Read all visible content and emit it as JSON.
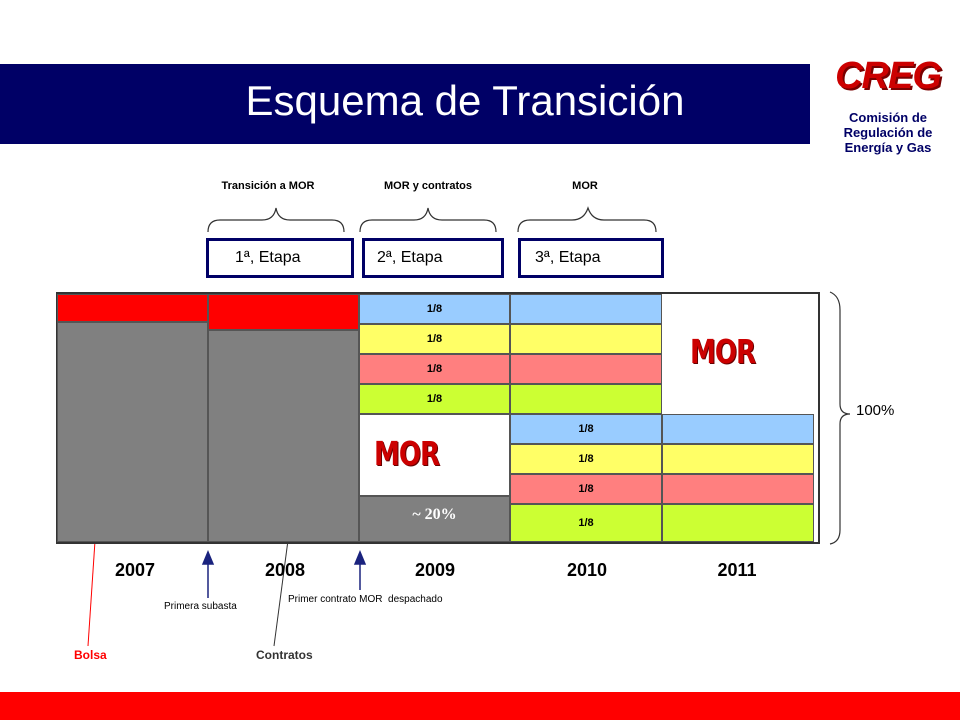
{
  "header": {
    "title": "Esquema de Transición",
    "logo_text": "CREG",
    "logo_subtitle": "Comisión de Regulación de Energía y Gas"
  },
  "phases": [
    "Transición a MOR",
    "MOR y contratos",
    "MOR"
  ],
  "stages": [
    "1ª, Etapa",
    "2ª, Etapa",
    "3ª, Etapa"
  ],
  "years": [
    "2007",
    "2008",
    "2009",
    "2010",
    "2011"
  ],
  "diagram": {
    "fraction_label": "1/8",
    "approx_label": "~ 20%",
    "total_label": "100%",
    "mor_label": "MOR"
  },
  "notes": {
    "primera_subasta": "Primera subasta",
    "primer_contrato": "Primer contrato MOR  despachado",
    "bolsa": "Bolsa",
    "contratos": "Contratos"
  },
  "colors": {
    "banner": "#000066",
    "bolsa": "#ff0000",
    "contratos": "#808080",
    "blue": "#99ccff",
    "yellow": "#ffff66",
    "salmon": "#ff7f7f",
    "green": "#ccff33",
    "bottom_bar": "#ff0000"
  }
}
